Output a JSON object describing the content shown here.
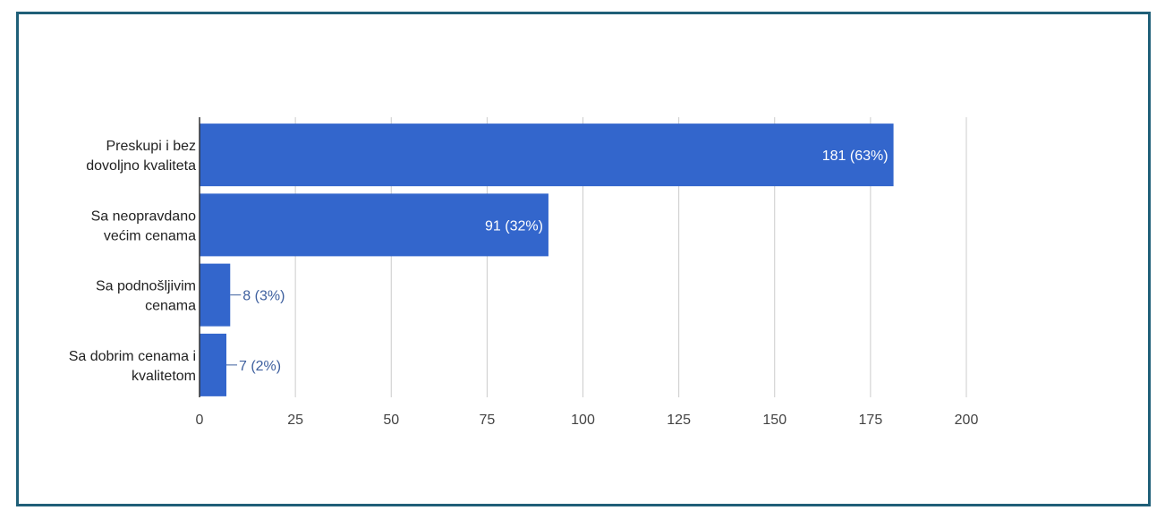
{
  "chart_data": {
    "type": "bar",
    "orientation": "horizontal",
    "categories": [
      [
        "Preskupi i bez",
        "dovoljno kvaliteta"
      ],
      [
        "Sa neopravdano",
        "većim cenama"
      ],
      [
        "Sa podnošljivim",
        "cenama"
      ],
      [
        "Sa dobrim cenama i",
        "kvalitetom"
      ]
    ],
    "values": [
      181,
      91,
      8,
      7
    ],
    "data_labels": [
      "181 (63%)",
      "91 (32%)",
      "8 (3%)",
      "7 (2%)"
    ],
    "xlim": [
      0,
      200
    ],
    "xticks": [
      0,
      25,
      50,
      75,
      100,
      125,
      150,
      175,
      200
    ],
    "grid": true,
    "legend": "none",
    "colors": {
      "bar": "#3366cc",
      "grid": "#cccccc",
      "axis": "#333333",
      "frame": "#1f5f78",
      "outside_label": "#3d5f9e"
    }
  }
}
